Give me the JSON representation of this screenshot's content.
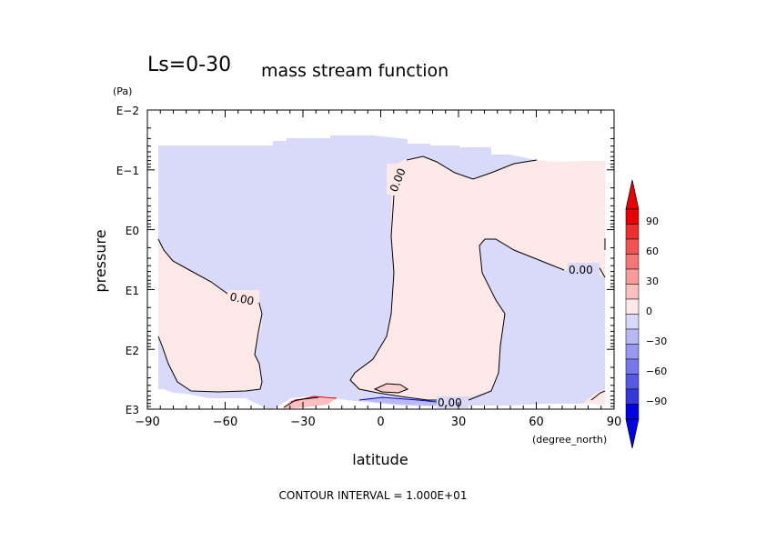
{
  "chart_data": {
    "type": "heatmap",
    "title_left": "Ls=0-30",
    "title_right": "mass stream function",
    "xlabel": "latitude",
    "x_unit": "(degree_north)",
    "ylabel": "pressure",
    "y_unit": "(Pa)",
    "x_ticks": [
      "−90",
      "−60",
      "−30",
      "0",
      "30",
      "60",
      "90"
    ],
    "y_ticks": [
      "E−2",
      "E−1",
      "E0",
      "E1",
      "E2",
      "E3"
    ],
    "xlim": [
      -90,
      90
    ],
    "ylim_log10_pa": [
      -2,
      3
    ],
    "y_scale": "log",
    "contour_labels": [
      "0.00",
      "0.00",
      "0.00",
      "0.00"
    ],
    "colorbar": {
      "ticks": [
        "90",
        "60",
        "30",
        "0",
        "−30",
        "−60",
        "−90"
      ],
      "colors_top_to_bottom": [
        "#e60000",
        "#ec3030",
        "#f05454",
        "#f47878",
        "#f79c9c",
        "#f9c0c0",
        "#fde8e8",
        "#d8d8f8",
        "#b8b8f4",
        "#9898ee",
        "#7878e8",
        "#5858e0",
        "#3838d8",
        "#0000e0"
      ]
    },
    "footer": "CONTOUR INTERVAL = 1.000E+01",
    "colors": {
      "positive_fill": "#fde8e8",
      "negative_fill": "#d9d9f9",
      "contour": "#000000",
      "positive_strong": "#e64040",
      "negative_strong": "#0000cc"
    }
  }
}
